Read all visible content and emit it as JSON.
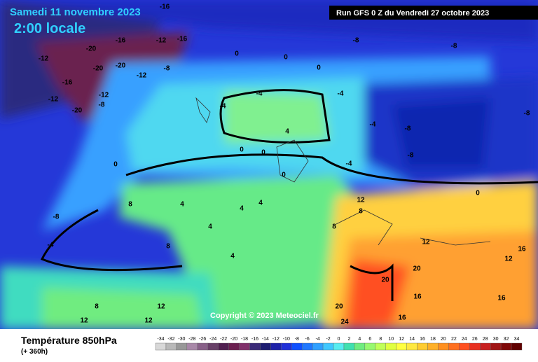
{
  "header": {
    "date": "Samedi 11 novembre 2023",
    "time": "2:00 locale",
    "run": "Run GFS 0 Z du Vendredi 27 octobre 2023"
  },
  "copyright": "Copyright © 2023 Meteociel.fr",
  "footer": {
    "title": "Température 850hPa",
    "lead": "(+ 360h)"
  },
  "contour_labels": [
    -16,
    -20,
    -16,
    -12,
    -16,
    -12,
    -16,
    -20,
    -20,
    -12,
    -8,
    -12,
    -8,
    -20,
    -12,
    0,
    0,
    0,
    -8,
    -8,
    -4,
    -4,
    -4,
    -8,
    -8,
    -4,
    -8,
    0,
    0,
    0,
    0,
    4,
    4,
    4,
    8,
    -8,
    -4,
    4,
    8,
    4,
    8,
    12,
    12,
    16,
    20,
    20,
    16,
    20,
    24,
    16,
    12,
    12,
    8,
    12,
    12,
    16,
    -4,
    0,
    8,
    4
  ],
  "scale": {
    "values": [
      -34,
      -32,
      -30,
      -28,
      -26,
      -24,
      -22,
      -20,
      -18,
      -16,
      -14,
      -12,
      -10,
      -8,
      -6,
      -4,
      -2,
      0,
      2,
      4,
      6,
      8,
      10,
      12,
      14,
      16,
      18,
      20,
      22,
      24,
      26,
      28,
      30,
      32,
      34
    ],
    "colors": [
      "#d8d8d8",
      "#b8b8b8",
      "#989898",
      "#a888a8",
      "#886088",
      "#684068",
      "#502050",
      "#6b2050",
      "#80306a",
      "#3a2a78",
      "#1c1c70",
      "#1e22a8",
      "#2030d8",
      "#1050ff",
      "#2078ff",
      "#30a0ff",
      "#40c8ff",
      "#58ecf0",
      "#40e0b0",
      "#70ec80",
      "#98f870",
      "#c0ff58",
      "#e0ff40",
      "#ffff40",
      "#ffe840",
      "#ffcc30",
      "#ffb028",
      "#ff9020",
      "#ff7020",
      "#ff5020",
      "#e83020",
      "#c82020",
      "#a01414",
      "#800808",
      "#600000"
    ]
  }
}
